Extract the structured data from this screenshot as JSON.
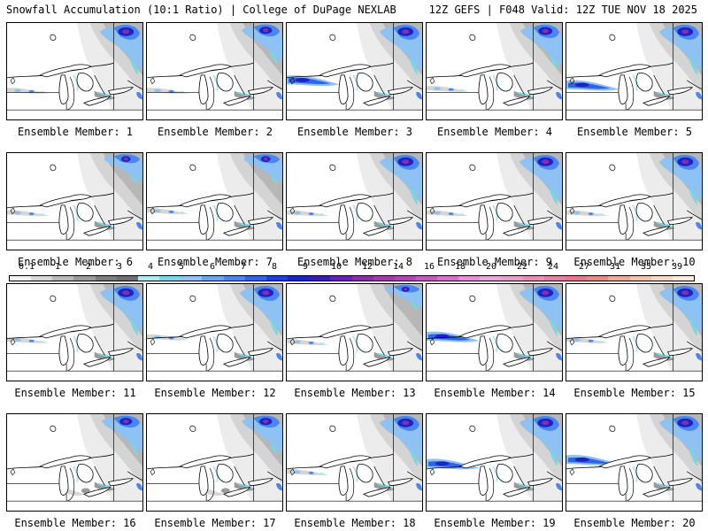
{
  "header": {
    "left": "Snowfall Accumulation (10:1 Ratio) | College of DuPage NEXLAB",
    "right": "12Z GEFS | F048 Valid: 12Z TUE NOV 18 2025"
  },
  "colorbar": {
    "labels": [
      "0.1",
      "1",
      "2",
      "3",
      "4",
      "5",
      "6",
      "7",
      "8",
      "9",
      "10",
      "12",
      "14",
      "16",
      "18",
      "20",
      "22",
      "24",
      "27",
      "31",
      "35",
      "39"
    ],
    "colors": [
      "#f2f2f2",
      "#d6d6d6",
      "#b9b9b9",
      "#9a9a9a",
      "#7d7d7d",
      "#6e6e6e",
      "#aeeaf0",
      "#75d8e6",
      "#8ec2f2",
      "#6aa6f0",
      "#4a86ec",
      "#2f64e6",
      "#1f40d8",
      "#1a24c8",
      "#3b1bb5",
      "#6a20b5",
      "#8a2ea8",
      "#a43aaa",
      "#b445b4",
      "#c658c0",
      "#d86fcc",
      "#e68ed8",
      "#e8a7d9",
      "#e99ec8",
      "#e78fb6",
      "#e37f9f",
      "#e3788c",
      "#e88a84",
      "#edaa98",
      "#f2c2ae",
      "#f6d8c8",
      "#faeadf"
    ]
  },
  "members": [
    {
      "label": "Ensemble Member: 1",
      "band": "light",
      "bandY": 0.7,
      "north": 1.0
    },
    {
      "label": "Ensemble Member: 2",
      "band": "light",
      "bandY": 0.7,
      "north": 0.8
    },
    {
      "label": "Ensemble Member: 3",
      "band": "strong",
      "bandY": 0.6,
      "north": 1.0
    },
    {
      "label": "Ensemble Member: 4",
      "band": "light",
      "bandY": 0.68,
      "north": 0.9
    },
    {
      "label": "Ensemble Member: 5",
      "band": "strong",
      "bandY": 0.65,
      "north": 1.0
    },
    {
      "label": "Ensemble Member: 6",
      "band": "light",
      "bandY": 0.62,
      "north": 0.6
    },
    {
      "label": "Ensemble Member: 7",
      "band": "light",
      "bandY": 0.6,
      "north": 0.6
    },
    {
      "label": "Ensemble Member: 8",
      "band": "light",
      "bandY": 0.62,
      "north": 1.0
    },
    {
      "label": "Ensemble Member: 9",
      "band": "light",
      "bandY": 0.62,
      "north": 1.0
    },
    {
      "label": "Ensemble Member: 10",
      "band": "light",
      "bandY": 0.62,
      "north": 1.0
    },
    {
      "label": "Ensemble Member: 11",
      "band": "light",
      "bandY": 0.58,
      "north": 1.0
    },
    {
      "label": "Ensemble Member: 12",
      "band": "light",
      "bandY": 0.55,
      "north": 1.0
    },
    {
      "label": "Ensemble Member: 13",
      "band": "light",
      "bandY": 0.6,
      "north": 0.5
    },
    {
      "label": "Ensemble Member: 14",
      "band": "strong",
      "bandY": 0.55,
      "north": 1.0
    },
    {
      "label": "Ensemble Member: 15",
      "band": "light",
      "bandY": 0.58,
      "north": 1.0
    },
    {
      "label": "Ensemble Member: 16",
      "band": "none",
      "bandY": 0.7,
      "north": 0.8
    },
    {
      "label": "Ensemble Member: 17",
      "band": "none",
      "bandY": 0.7,
      "north": 0.8
    },
    {
      "label": "Ensemble Member: 18",
      "band": "light",
      "bandY": 0.6,
      "north": 1.0
    },
    {
      "label": "Ensemble Member: 19",
      "band": "strong",
      "bandY": 0.52,
      "north": 1.0
    },
    {
      "label": "Ensemble Member: 20",
      "band": "strong",
      "bandY": 0.48,
      "north": 1.0
    }
  ]
}
